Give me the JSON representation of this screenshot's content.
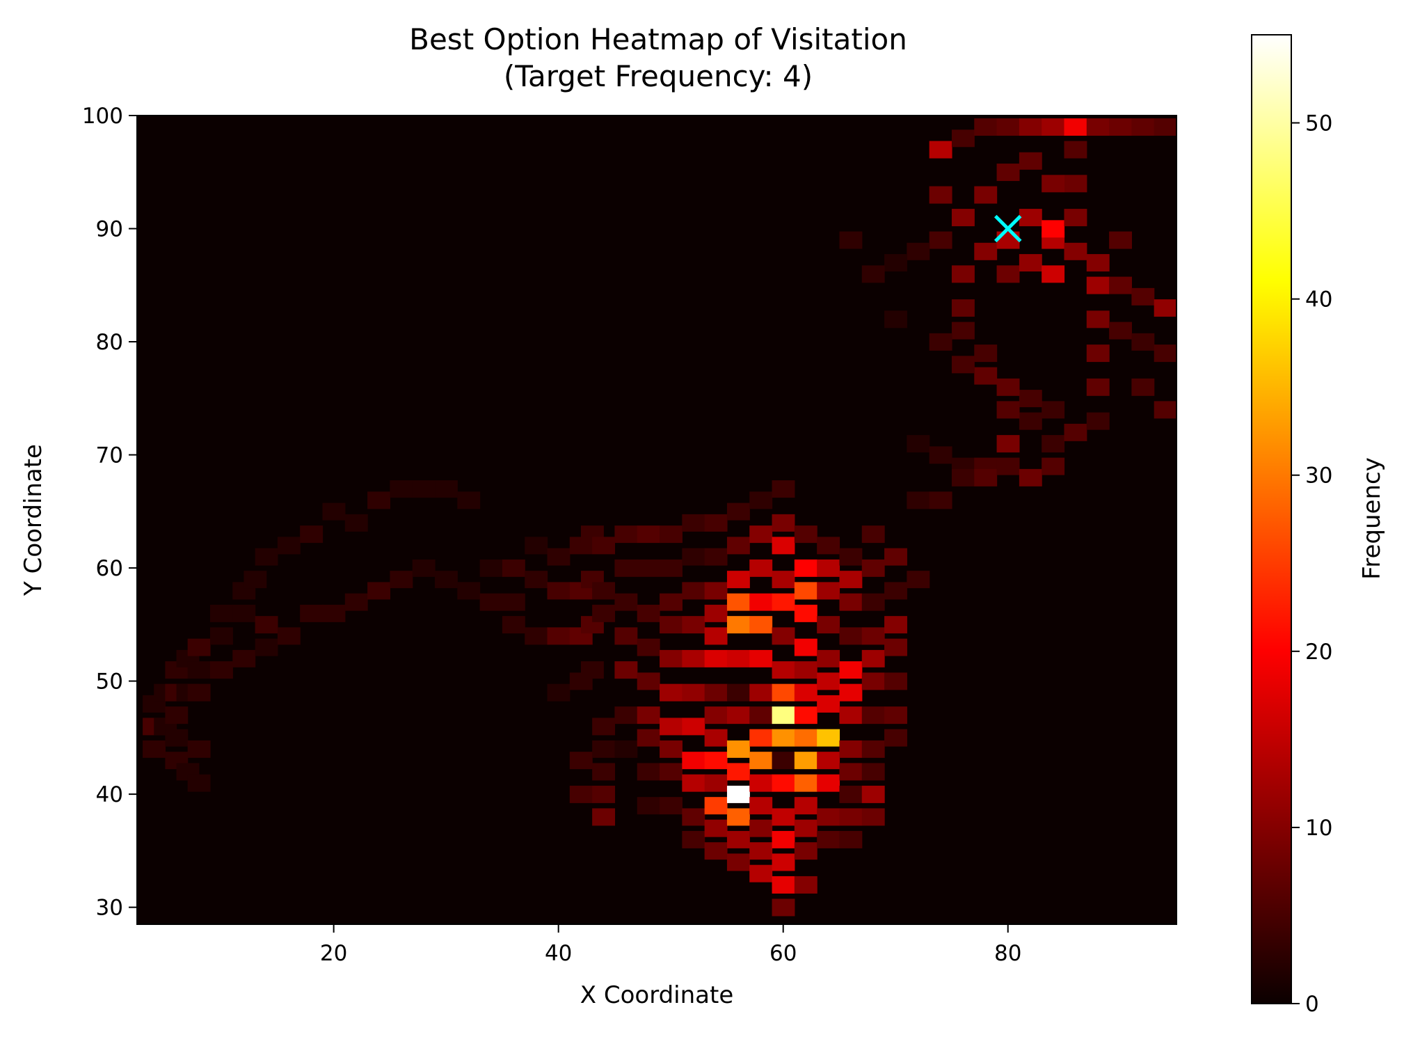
{
  "chart_data": {
    "type": "heatmap",
    "title_line1": "Best Option Heatmap of Visitation",
    "title_line2": "(Target Frequency: 4)",
    "xlabel": "X Coordinate",
    "ylabel": "Y Coordinate",
    "colorbar_label": "Frequency",
    "colormap": "hot",
    "xlim": [
      2.5,
      95
    ],
    "ylim": [
      28.5,
      100
    ],
    "xticks": [
      "20",
      "40",
      "60",
      "80"
    ],
    "xtick_values": [
      20,
      40,
      60,
      80
    ],
    "yticks": [
      "30",
      "40",
      "50",
      "60",
      "70",
      "80",
      "90",
      "100"
    ],
    "ytick_values": [
      30,
      40,
      50,
      60,
      70,
      80,
      90,
      100
    ],
    "colorbar_range": [
      0,
      55
    ],
    "colorbar_ticks": [
      "0",
      "10",
      "20",
      "30",
      "40",
      "50"
    ],
    "colorbar_tick_values": [
      0,
      10,
      20,
      30,
      40,
      50
    ],
    "bin_size_x": 2,
    "bin_size_y": 1.5,
    "bins": [
      [
        4,
        48,
        2
      ],
      [
        4,
        46,
        5
      ],
      [
        4,
        44,
        3
      ],
      [
        5,
        49,
        2
      ],
      [
        5,
        46,
        2
      ],
      [
        6,
        51,
        3
      ],
      [
        6,
        49,
        4
      ],
      [
        6,
        47,
        3
      ],
      [
        6,
        45,
        2
      ],
      [
        6,
        43,
        3
      ],
      [
        7,
        52,
        2
      ],
      [
        7,
        49,
        2
      ],
      [
        7,
        42,
        2
      ],
      [
        8,
        53,
        4
      ],
      [
        8,
        51,
        2
      ],
      [
        8,
        49,
        3
      ],
      [
        8,
        44,
        3
      ],
      [
        8,
        41,
        2
      ],
      [
        10,
        56,
        2
      ],
      [
        10,
        54,
        2
      ],
      [
        10,
        51,
        3
      ],
      [
        12,
        58,
        2
      ],
      [
        12,
        56,
        2
      ],
      [
        12,
        52,
        3
      ],
      [
        13,
        59,
        2
      ],
      [
        14,
        61,
        2
      ],
      [
        14,
        55,
        4
      ],
      [
        14,
        53,
        2
      ],
      [
        16,
        62,
        2
      ],
      [
        16,
        54,
        3
      ],
      [
        18,
        63,
        3
      ],
      [
        18,
        56,
        3
      ],
      [
        20,
        56,
        3
      ],
      [
        20,
        65,
        2
      ],
      [
        22,
        64,
        2
      ],
      [
        22,
        57,
        3
      ],
      [
        24,
        66,
        3
      ],
      [
        24,
        58,
        4
      ],
      [
        26,
        67,
        2
      ],
      [
        26,
        59,
        3
      ],
      [
        28,
        67,
        2
      ],
      [
        28,
        60,
        2
      ],
      [
        30,
        67,
        2
      ],
      [
        30,
        59,
        2
      ],
      [
        32,
        66,
        2
      ],
      [
        32,
        58,
        2
      ],
      [
        34,
        60,
        2
      ],
      [
        34,
        57,
        3
      ],
      [
        36,
        60,
        4
      ],
      [
        36,
        57,
        3
      ],
      [
        36,
        55,
        3
      ],
      [
        38,
        59,
        3
      ],
      [
        38,
        62,
        2
      ],
      [
        38,
        54,
        3
      ],
      [
        40,
        61,
        3
      ],
      [
        40,
        58,
        5
      ],
      [
        40,
        54,
        6
      ],
      [
        40,
        49,
        2
      ],
      [
        42,
        62,
        4
      ],
      [
        42,
        58,
        6
      ],
      [
        42,
        54,
        7
      ],
      [
        42,
        50,
        3
      ],
      [
        42,
        43,
        4
      ],
      [
        42,
        40,
        5
      ],
      [
        43,
        63,
        4
      ],
      [
        43,
        59,
        5
      ],
      [
        43,
        55,
        6
      ],
      [
        43,
        51,
        3
      ],
      [
        44,
        62,
        5
      ],
      [
        44,
        58,
        4
      ],
      [
        44,
        56,
        4
      ],
      [
        44,
        46,
        4
      ],
      [
        44,
        44,
        3
      ],
      [
        44,
        42,
        4
      ],
      [
        44,
        40,
        6
      ],
      [
        44,
        38,
        8
      ],
      [
        46,
        63,
        5
      ],
      [
        46,
        60,
        4
      ],
      [
        46,
        57,
        4
      ],
      [
        46,
        54,
        6
      ],
      [
        46,
        51,
        8
      ],
      [
        46,
        47,
        4
      ],
      [
        46,
        44,
        2
      ],
      [
        48,
        63,
        6
      ],
      [
        48,
        60,
        4
      ],
      [
        48,
        56,
        5
      ],
      [
        48,
        53,
        5
      ],
      [
        48,
        50,
        7
      ],
      [
        48,
        47,
        9
      ],
      [
        48,
        45,
        7
      ],
      [
        48,
        42,
        4
      ],
      [
        48,
        39,
        3
      ],
      [
        50,
        63,
        5
      ],
      [
        50,
        60,
        4
      ],
      [
        50,
        57,
        6
      ],
      [
        50,
        55,
        7
      ],
      [
        50,
        52,
        10
      ],
      [
        50,
        49,
        12
      ],
      [
        50,
        46,
        14
      ],
      [
        50,
        44,
        9
      ],
      [
        50,
        42,
        6
      ],
      [
        50,
        39,
        4
      ],
      [
        52,
        64,
        4
      ],
      [
        52,
        61,
        3
      ],
      [
        52,
        58,
        6
      ],
      [
        52,
        55,
        9
      ],
      [
        52,
        52,
        13
      ],
      [
        52,
        49,
        11
      ],
      [
        52,
        46,
        16
      ],
      [
        52,
        43,
        19
      ],
      [
        52,
        41,
        14
      ],
      [
        52,
        38,
        7
      ],
      [
        52,
        36,
        5
      ],
      [
        54,
        64,
        5
      ],
      [
        54,
        61,
        4
      ],
      [
        54,
        58,
        9
      ],
      [
        54,
        56,
        12
      ],
      [
        54,
        54,
        14
      ],
      [
        54,
        52,
        17
      ],
      [
        54,
        49,
        8
      ],
      [
        54,
        47,
        10
      ],
      [
        54,
        45,
        13
      ],
      [
        54,
        43,
        21
      ],
      [
        54,
        41,
        12
      ],
      [
        54,
        39,
        25
      ],
      [
        54,
        37,
        11
      ],
      [
        54,
        35,
        8
      ],
      [
        56,
        65,
        4
      ],
      [
        56,
        62,
        7
      ],
      [
        56,
        59,
        16
      ],
      [
        56,
        57,
        27
      ],
      [
        56,
        55,
        30
      ],
      [
        56,
        52,
        16
      ],
      [
        56,
        49,
        4
      ],
      [
        56,
        47,
        12
      ],
      [
        56,
        44,
        32
      ],
      [
        56,
        42,
        22
      ],
      [
        56,
        40,
        55
      ],
      [
        56,
        38,
        28
      ],
      [
        56,
        36,
        12
      ],
      [
        56,
        34,
        9
      ],
      [
        58,
        66,
        3
      ],
      [
        58,
        63,
        10
      ],
      [
        58,
        60,
        14
      ],
      [
        58,
        57,
        19
      ],
      [
        58,
        55,
        27
      ],
      [
        58,
        52,
        18
      ],
      [
        58,
        49,
        12
      ],
      [
        58,
        47,
        7
      ],
      [
        58,
        45,
        24
      ],
      [
        58,
        43,
        30
      ],
      [
        58,
        41,
        16
      ],
      [
        58,
        39,
        14
      ],
      [
        58,
        37,
        10
      ],
      [
        58,
        35,
        12
      ],
      [
        58,
        33,
        14
      ],
      [
        60,
        67,
        4
      ],
      [
        60,
        64,
        9
      ],
      [
        60,
        62,
        17
      ],
      [
        60,
        59,
        13
      ],
      [
        60,
        57,
        22
      ],
      [
        60,
        54,
        10
      ],
      [
        60,
        51,
        14
      ],
      [
        60,
        49,
        26
      ],
      [
        60,
        47,
        48
      ],
      [
        60,
        45,
        32
      ],
      [
        60,
        43,
        4
      ],
      [
        60,
        41,
        21
      ],
      [
        60,
        38,
        15
      ],
      [
        60,
        36,
        19
      ],
      [
        60,
        34,
        16
      ],
      [
        60,
        32,
        18
      ],
      [
        60,
        30,
        8
      ],
      [
        62,
        63,
        6
      ],
      [
        62,
        60,
        20
      ],
      [
        62,
        58,
        26
      ],
      [
        62,
        56,
        21
      ],
      [
        62,
        53,
        19
      ],
      [
        62,
        51,
        12
      ],
      [
        62,
        49,
        17
      ],
      [
        62,
        47,
        21
      ],
      [
        62,
        45,
        29
      ],
      [
        62,
        43,
        33
      ],
      [
        62,
        41,
        28
      ],
      [
        62,
        39,
        14
      ],
      [
        62,
        37,
        12
      ],
      [
        62,
        35,
        9
      ],
      [
        62,
        32,
        10
      ],
      [
        64,
        62,
        5
      ],
      [
        64,
        60,
        14
      ],
      [
        64,
        58,
        12
      ],
      [
        64,
        55,
        9
      ],
      [
        64,
        52,
        11
      ],
      [
        64,
        50,
        15
      ],
      [
        64,
        48,
        17
      ],
      [
        64,
        45,
        36
      ],
      [
        64,
        43,
        14
      ],
      [
        64,
        41,
        18
      ],
      [
        64,
        38,
        10
      ],
      [
        64,
        36,
        6
      ],
      [
        66,
        61,
        4
      ],
      [
        66,
        59,
        13
      ],
      [
        66,
        57,
        9
      ],
      [
        66,
        54,
        6
      ],
      [
        66,
        51,
        19
      ],
      [
        66,
        49,
        18
      ],
      [
        66,
        47,
        13
      ],
      [
        66,
        44,
        10
      ],
      [
        66,
        42,
        8
      ],
      [
        66,
        40,
        5
      ],
      [
        66,
        38,
        9
      ],
      [
        66,
        36,
        5
      ],
      [
        68,
        63,
        5
      ],
      [
        68,
        60,
        7
      ],
      [
        68,
        57,
        4
      ],
      [
        68,
        54,
        8
      ],
      [
        68,
        52,
        12
      ],
      [
        68,
        50,
        9
      ],
      [
        68,
        47,
        6
      ],
      [
        68,
        44,
        6
      ],
      [
        68,
        42,
        5
      ],
      [
        68,
        40,
        12
      ],
      [
        68,
        38,
        8
      ],
      [
        70,
        61,
        7
      ],
      [
        70,
        58,
        4
      ],
      [
        70,
        55,
        10
      ],
      [
        70,
        53,
        8
      ],
      [
        70,
        50,
        6
      ],
      [
        70,
        47,
        7
      ],
      [
        70,
        45,
        5
      ],
      [
        72,
        59,
        4
      ],
      [
        72,
        71,
        2
      ],
      [
        72,
        66,
        3
      ],
      [
        74,
        70,
        3
      ],
      [
        74,
        66,
        4
      ],
      [
        76,
        69,
        3
      ],
      [
        76,
        68,
        4
      ],
      [
        78,
        69,
        5
      ],
      [
        78,
        68,
        6
      ],
      [
        80,
        69,
        5
      ],
      [
        80,
        71,
        9
      ],
      [
        82,
        68,
        8
      ],
      [
        82,
        73,
        4
      ],
      [
        84,
        69,
        6
      ],
      [
        84,
        71,
        4
      ],
      [
        86,
        72,
        6
      ],
      [
        84,
        74,
        4
      ],
      [
        82,
        75,
        5
      ],
      [
        80,
        74,
        6
      ],
      [
        80,
        76,
        7
      ],
      [
        78,
        77,
        7
      ],
      [
        78,
        79,
        5
      ],
      [
        76,
        81,
        5
      ],
      [
        76,
        83,
        7
      ],
      [
        76,
        86,
        9
      ],
      [
        78,
        88,
        10
      ],
      [
        80,
        86,
        8
      ],
      [
        80,
        89,
        13
      ],
      [
        82,
        87,
        11
      ],
      [
        82,
        91,
        12
      ],
      [
        84,
        89,
        14
      ],
      [
        84,
        86,
        16
      ],
      [
        84,
        90,
        20
      ],
      [
        86,
        88,
        10
      ],
      [
        86,
        91,
        9
      ],
      [
        86,
        94,
        8
      ],
      [
        88,
        87,
        10
      ],
      [
        88,
        85,
        12
      ],
      [
        88,
        82,
        9
      ],
      [
        88,
        79,
        8
      ],
      [
        88,
        76,
        7
      ],
      [
        88,
        73,
        4
      ],
      [
        90,
        81,
        5
      ],
      [
        90,
        85,
        7
      ],
      [
        90,
        89,
        6
      ],
      [
        92,
        84,
        6
      ],
      [
        92,
        80,
        4
      ],
      [
        92,
        76,
        5
      ],
      [
        94,
        83,
        11
      ],
      [
        94,
        79,
        5
      ],
      [
        94,
        74,
        6
      ],
      [
        76,
        91,
        10
      ],
      [
        74,
        93,
        8
      ],
      [
        74,
        97,
        14
      ],
      [
        76,
        98,
        5
      ],
      [
        78,
        99,
        6
      ],
      [
        80,
        99,
        7
      ],
      [
        82,
        99,
        10
      ],
      [
        84,
        99,
        12
      ],
      [
        86,
        99,
        19
      ],
      [
        88,
        99,
        9
      ],
      [
        90,
        99,
        8
      ],
      [
        92,
        99,
        7
      ],
      [
        94,
        99,
        6
      ],
      [
        82,
        96,
        7
      ],
      [
        84,
        94,
        9
      ],
      [
        86,
        97,
        6
      ],
      [
        80,
        95,
        7
      ],
      [
        78,
        93,
        9
      ],
      [
        74,
        89,
        5
      ],
      [
        72,
        88,
        3
      ],
      [
        70,
        87,
        2
      ],
      [
        68,
        86,
        3
      ],
      [
        66,
        89,
        3
      ],
      [
        70,
        82,
        2
      ],
      [
        74,
        80,
        4
      ],
      [
        76,
        78,
        5
      ]
    ],
    "marker": {
      "x": 80,
      "y": 90,
      "symbol": "x",
      "color": "#00ffff"
    }
  }
}
